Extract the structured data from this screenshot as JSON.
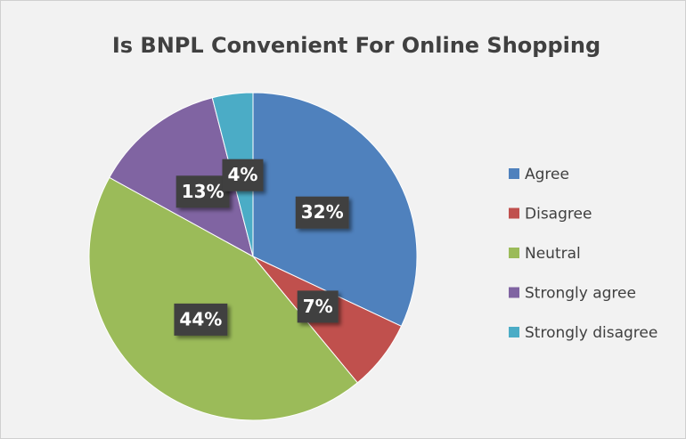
{
  "chart_data": {
    "type": "pie",
    "title": "Is BNPL Convenient For Online Shopping",
    "categories": [
      "Agree",
      "Disagree",
      "Neutral",
      "Strongly agree",
      "Strongly disagree"
    ],
    "values": [
      32,
      7,
      44,
      13,
      4
    ],
    "value_labels": [
      "32%",
      "7%",
      "44%",
      "13%",
      "4%"
    ],
    "colors": [
      "#4f81bd",
      "#c0504d",
      "#9bbb59",
      "#8064a2",
      "#4bacc6"
    ],
    "legend": "right"
  }
}
